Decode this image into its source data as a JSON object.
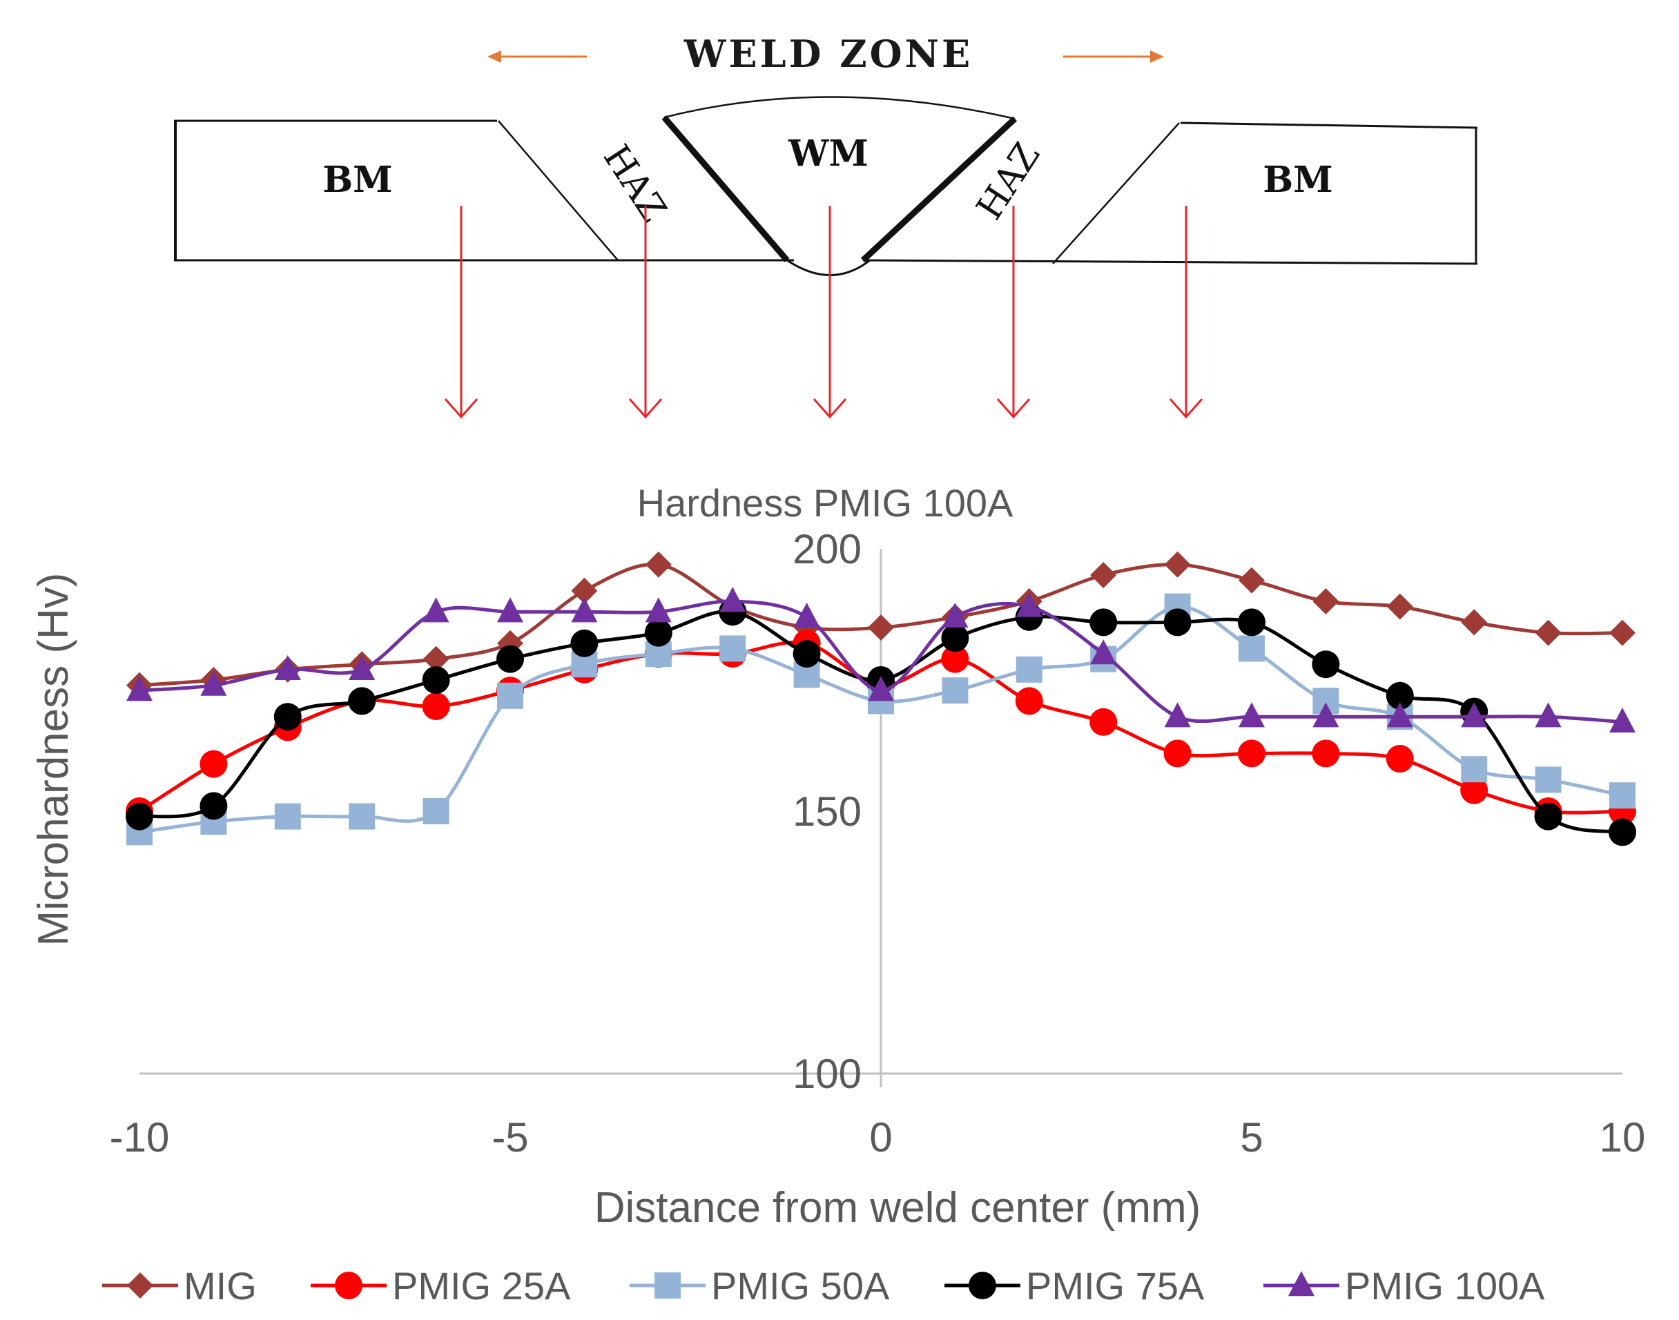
{
  "diagram": {
    "weld_zone_label": "WELD ZONE",
    "bm_left": "BM",
    "haz_left": "HAZ",
    "wm": "WM",
    "haz_right": "HAZ",
    "bm_right": "BM",
    "arrow_color": "#e8252a",
    "zone_arrow_color": "#e07b39"
  },
  "chart_data": {
    "type": "line",
    "title": "Hardness PMIG 100A",
    "xlabel": "Distance from weld center (mm)",
    "ylabel": "Microhardness (Hv)",
    "xlim": [
      -10,
      10
    ],
    "ylim": [
      100,
      200
    ],
    "x_ticks": [
      "-10",
      "-5",
      "0",
      "5",
      "10"
    ],
    "y_ticks": [
      "100",
      "150",
      "200"
    ],
    "grid": false,
    "legend_position": "bottom",
    "x": [
      -10,
      -9,
      -8,
      -7,
      -6,
      -5,
      -4,
      -3,
      -2,
      -1,
      0,
      1,
      2,
      3,
      4,
      5,
      6,
      7,
      8,
      9,
      10
    ],
    "series": [
      {
        "name": "MIG",
        "color": "#9e3b36",
        "marker": "diamond",
        "values": [
          174,
          175,
          177,
          178,
          179,
          182,
          192,
          197,
          189,
          185,
          185,
          187,
          190,
          195,
          197,
          194,
          190,
          189,
          186,
          184,
          184
        ]
      },
      {
        "name": "PMIG 25A",
        "color": "#ff0000",
        "marker": "circle",
        "values": [
          150,
          159,
          166,
          171,
          170,
          173,
          177,
          180,
          180,
          182,
          174,
          179,
          171,
          167,
          161,
          161,
          161,
          160,
          154,
          150,
          150
        ]
      },
      {
        "name": "PMIG 50A",
        "color": "#95b3d7",
        "marker": "square",
        "values": [
          146,
          148,
          149,
          149,
          150,
          172,
          178,
          180,
          181,
          176,
          171,
          173,
          177,
          179,
          189,
          181,
          171,
          168,
          158,
          156,
          153
        ]
      },
      {
        "name": "PMIG 75A",
        "color": "#000000",
        "marker": "circle",
        "values": [
          149,
          151,
          168,
          171,
          175,
          179,
          182,
          184,
          188,
          180,
          175,
          183,
          187,
          186,
          186,
          186,
          178,
          172,
          169,
          149,
          146
        ]
      },
      {
        "name": "PMIG 100A",
        "color": "#7030a0",
        "marker": "triangle",
        "values": [
          173,
          174,
          177,
          177,
          188,
          188,
          188,
          188,
          190,
          187,
          173,
          187,
          189,
          180,
          168,
          168,
          168,
          168,
          168,
          168,
          167
        ]
      }
    ]
  }
}
